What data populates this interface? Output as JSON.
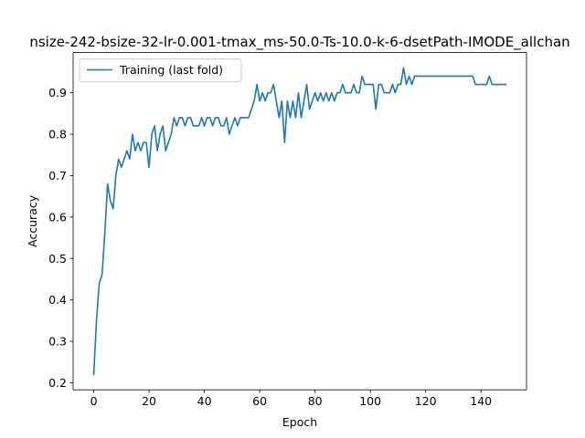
{
  "chart_data": {
    "type": "line",
    "title": "nsize-242-bsize-32-lr-0.001-tmax_ms-50.0-Ts-10.0-k-6-dsetPath-IMODE_allchan",
    "xlabel": "Epoch",
    "ylabel": "Accuracy",
    "xlim": [
      -7.45,
      156.45
    ],
    "ylim": [
      0.183,
      0.997
    ],
    "xticks": [
      0,
      20,
      40,
      60,
      80,
      100,
      120,
      140
    ],
    "yticks": [
      0.2,
      0.3,
      0.4,
      0.5,
      0.6,
      0.7,
      0.8,
      0.9
    ],
    "legend": {
      "placement": "upper-left"
    },
    "series": [
      {
        "name": "Training (last fold)",
        "color": "#1f77b4",
        "x": [
          0,
          1,
          2,
          3,
          4,
          5,
          6,
          7,
          8,
          9,
          10,
          11,
          12,
          13,
          14,
          15,
          16,
          17,
          18,
          19,
          20,
          21,
          22,
          23,
          24,
          25,
          26,
          27,
          28,
          29,
          30,
          31,
          32,
          33,
          34,
          35,
          36,
          37,
          38,
          39,
          40,
          41,
          42,
          43,
          44,
          45,
          46,
          47,
          48,
          49,
          50,
          51,
          52,
          53,
          54,
          55,
          56,
          57,
          58,
          59,
          60,
          61,
          62,
          63,
          64,
          65,
          66,
          67,
          68,
          69,
          70,
          71,
          72,
          73,
          74,
          75,
          76,
          77,
          78,
          79,
          80,
          81,
          82,
          83,
          84,
          85,
          86,
          87,
          88,
          89,
          90,
          91,
          92,
          93,
          94,
          95,
          96,
          97,
          98,
          99,
          100,
          101,
          102,
          103,
          104,
          105,
          106,
          107,
          108,
          109,
          110,
          111,
          112,
          113,
          114,
          115,
          116,
          117,
          118,
          119,
          120,
          121,
          122,
          123,
          124,
          125,
          126,
          127,
          128,
          129,
          130,
          131,
          132,
          133,
          134,
          135,
          136,
          137,
          138,
          139,
          140,
          141,
          142,
          143,
          144,
          145,
          146,
          147,
          148,
          149
        ],
        "values": [
          0.22,
          0.35,
          0.44,
          0.46,
          0.56,
          0.68,
          0.64,
          0.62,
          0.7,
          0.74,
          0.72,
          0.74,
          0.76,
          0.74,
          0.8,
          0.76,
          0.78,
          0.76,
          0.78,
          0.78,
          0.72,
          0.8,
          0.82,
          0.76,
          0.8,
          0.82,
          0.76,
          0.78,
          0.8,
          0.84,
          0.82,
          0.84,
          0.84,
          0.82,
          0.84,
          0.84,
          0.82,
          0.82,
          0.82,
          0.84,
          0.82,
          0.84,
          0.84,
          0.82,
          0.84,
          0.84,
          0.82,
          0.82,
          0.84,
          0.8,
          0.82,
          0.84,
          0.82,
          0.84,
          0.84,
          0.84,
          0.84,
          0.86,
          0.88,
          0.92,
          0.88,
          0.9,
          0.88,
          0.9,
          0.9,
          0.92,
          0.88,
          0.84,
          0.88,
          0.78,
          0.88,
          0.84,
          0.88,
          0.84,
          0.9,
          0.84,
          0.88,
          0.92,
          0.86,
          0.88,
          0.9,
          0.88,
          0.9,
          0.88,
          0.9,
          0.88,
          0.9,
          0.88,
          0.9,
          0.9,
          0.92,
          0.9,
          0.9,
          0.9,
          0.92,
          0.9,
          0.9,
          0.94,
          0.92,
          0.92,
          0.92,
          0.92,
          0.86,
          0.92,
          0.92,
          0.9,
          0.9,
          0.9,
          0.92,
          0.9,
          0.92,
          0.92,
          0.96,
          0.92,
          0.94,
          0.92,
          0.94,
          0.94,
          0.94,
          0.94,
          0.94,
          0.94,
          0.94,
          0.94,
          0.94,
          0.94,
          0.94,
          0.94,
          0.94,
          0.94,
          0.94,
          0.94,
          0.94,
          0.94,
          0.94,
          0.94,
          0.94,
          0.94,
          0.92,
          0.92,
          0.92,
          0.92,
          0.92,
          0.94,
          0.92,
          0.92,
          0.92,
          0.92,
          0.92,
          0.92
        ]
      }
    ]
  }
}
